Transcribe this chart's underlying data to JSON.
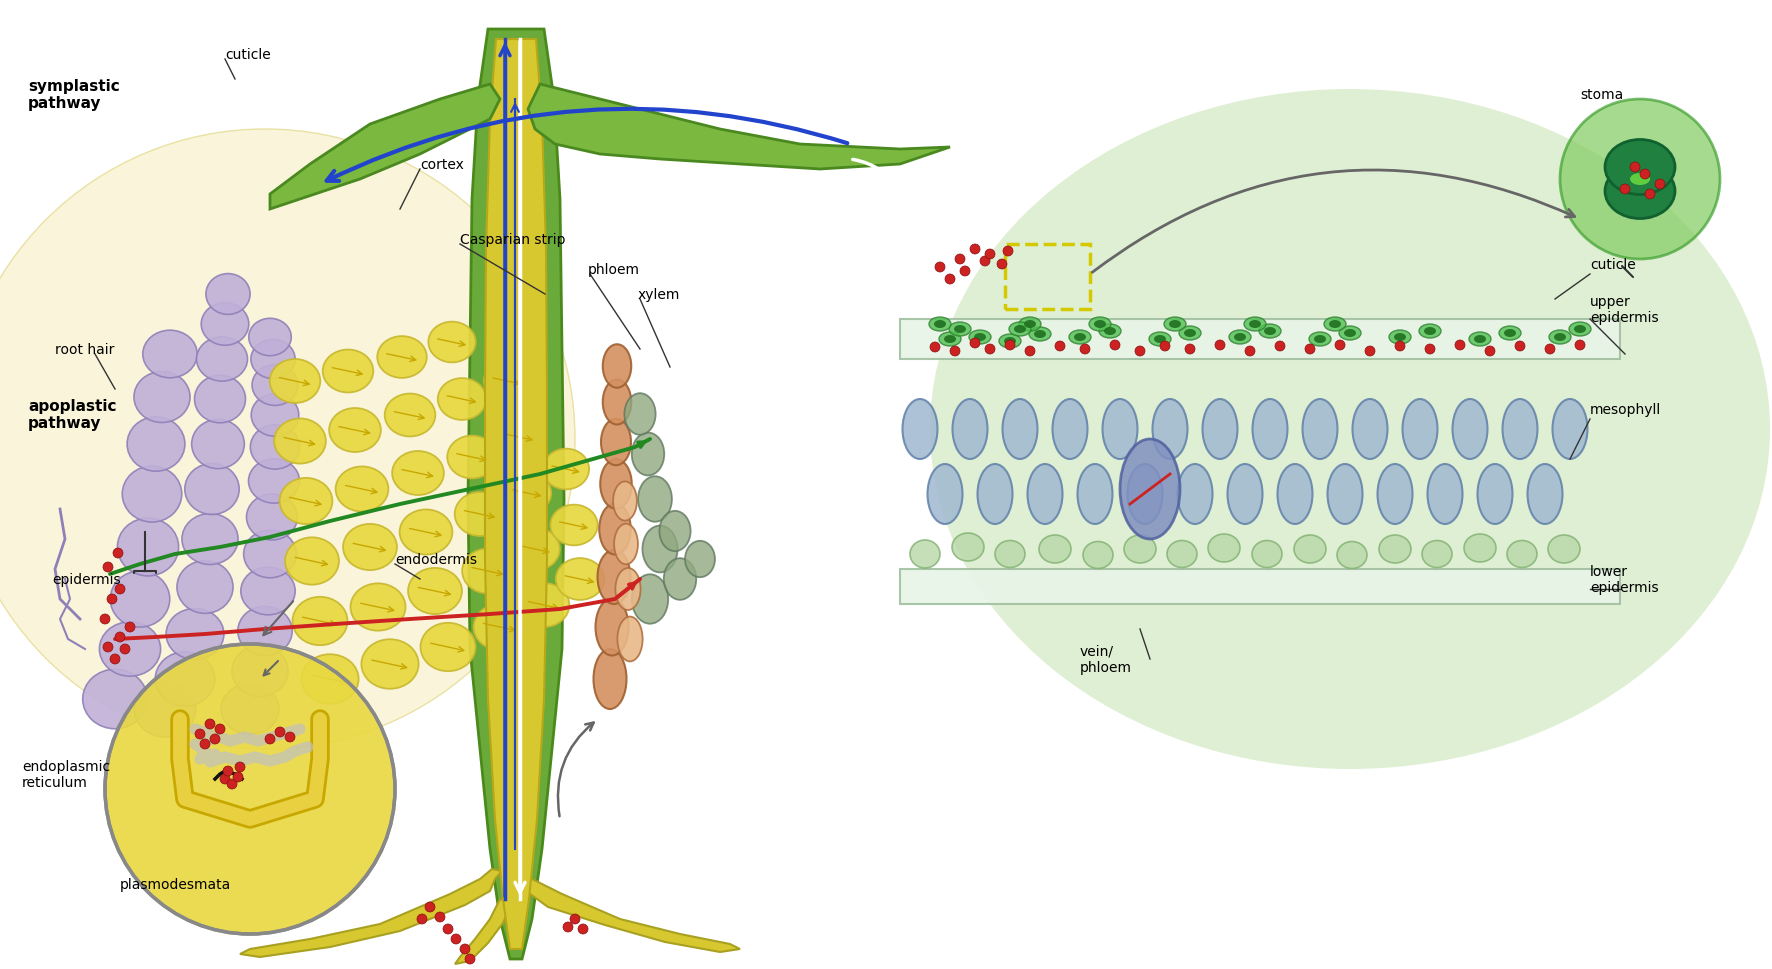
{
  "labels": {
    "symplastic_pathway": "symplastic\npathway",
    "apoplastic_pathway": "apoplastic\npathway",
    "cuticle_left": "cuticle",
    "root_hair": "root hair",
    "cortex": "cortex",
    "casparian_strip": "Casparian strip",
    "phloem_left": "phloem",
    "xylem_left": "xylem",
    "endodermis": "endodermis",
    "epidermis": "epidermis",
    "endoplasmic_reticulum": "endoplasmic\nreticulum",
    "plasmodesmata": "plasmodesmata",
    "stoma": "stoma",
    "cuticle_right": "cuticle",
    "upper_epidermis": "upper\nepidermis",
    "mesophyll": "mesophyll",
    "vein_phloem": "vein/\nphloem",
    "lower_epidermis": "lower\nepidermis"
  },
  "colors": {
    "background": "#ffffff",
    "light_yellow_bg": "#f5f0c8",
    "light_green_bg": "#deecd0",
    "green_leaf": "#7ab648",
    "dark_green": "#3d8b37",
    "yellow_cortex": "#e8d84a",
    "purple_epidermis": "#b8a8cc",
    "brown_phloem": "#c8804a",
    "gray_xylem": "#a8b8a8",
    "dark_gray_xylem": "#708878",
    "red_path": "#cc2222",
    "green_path": "#228822",
    "blue_arrow": "#2244cc",
    "white_arrow": "#ffffff",
    "dark_arrow": "#334455",
    "stem_green": "#5a9a3a",
    "stem_yellow": "#d4c840",
    "root_yellow": "#d4c840",
    "red_dot": "#cc2222",
    "zoom_circle_bg": "#e8d840",
    "zoom_circle_border": "#888888"
  }
}
